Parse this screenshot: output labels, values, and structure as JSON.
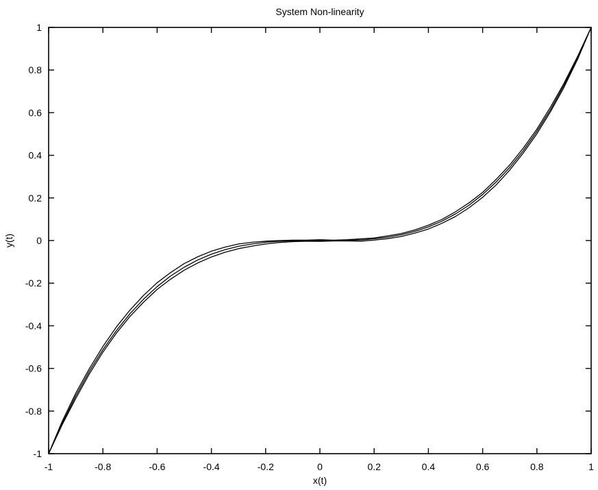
{
  "chart_data": {
    "type": "line",
    "title": "System Non-linearity",
    "xlabel": "x(t)",
    "ylabel": "y(t)",
    "xlim": [
      -1,
      1
    ],
    "ylim": [
      -1,
      1
    ],
    "grid": false,
    "x_ticks": [
      -1,
      -0.8,
      -0.6,
      -0.4,
      -0.2,
      0,
      0.2,
      0.4,
      0.6,
      0.8,
      1
    ],
    "x_tick_labels": [
      "-1",
      "-0.8",
      "-0.6",
      "-0.4",
      "-0.2",
      "0",
      "0.2",
      "0.4",
      "0.6",
      "0.8",
      "1"
    ],
    "y_ticks": [
      -1,
      -0.8,
      -0.6,
      -0.4,
      -0.2,
      0,
      0.2,
      0.4,
      0.6,
      0.8,
      1
    ],
    "y_tick_labels": [
      "-1",
      "-0.8",
      "-0.6",
      "-0.4",
      "-0.2",
      "0",
      "0.2",
      "0.4",
      "0.6",
      "0.8",
      "1"
    ],
    "x": [
      -1,
      -0.95,
      -0.9,
      -0.85,
      -0.8,
      -0.75,
      -0.7,
      -0.65,
      -0.6,
      -0.55,
      -0.5,
      -0.45,
      -0.4,
      -0.35,
      -0.3,
      -0.25,
      -0.2,
      -0.15,
      -0.1,
      -0.05,
      0,
      0.05,
      0.1,
      0.15,
      0.2,
      0.25,
      0.3,
      0.35,
      0.4,
      0.45,
      0.5,
      0.55,
      0.6,
      0.65,
      0.7,
      0.75,
      0.8,
      0.85,
      0.9,
      0.95,
      1
    ],
    "series": [
      {
        "values": [
          -1,
          -0.857,
          -0.729,
          -0.614,
          -0.512,
          -0.422,
          -0.343,
          -0.275,
          -0.216,
          -0.166,
          -0.125,
          -0.091,
          -0.064,
          -0.043,
          -0.027,
          -0.016,
          -0.008,
          -0.003,
          -0.001,
          0,
          0,
          0,
          0.001,
          0.003,
          0.008,
          0.016,
          0.027,
          0.043,
          0.064,
          0.091,
          0.125,
          0.166,
          0.216,
          0.275,
          0.343,
          0.422,
          0.512,
          0.614,
          0.729,
          0.857,
          1
        ]
      },
      {
        "values": [
          -1,
          -0.848,
          -0.716,
          -0.601,
          -0.497,
          -0.405,
          -0.326,
          -0.257,
          -0.198,
          -0.15,
          -0.108,
          -0.076,
          -0.05,
          -0.031,
          -0.016,
          -0.008,
          -0.003,
          0,
          0.002,
          0.002,
          0.004,
          0.002,
          0.004,
          0.008,
          0.012,
          0.022,
          0.033,
          0.05,
          0.072,
          0.099,
          0.135,
          0.177,
          0.226,
          0.287,
          0.355,
          0.434,
          0.523,
          0.626,
          0.738,
          0.864,
          1
        ]
      },
      {
        "values": [
          -1,
          -0.864,
          -0.741,
          -0.626,
          -0.524,
          -0.434,
          -0.356,
          -0.289,
          -0.229,
          -0.181,
          -0.139,
          -0.105,
          -0.077,
          -0.055,
          -0.038,
          -0.026,
          -0.016,
          -0.009,
          -0.005,
          -0.003,
          -0.004,
          -0.002,
          -0.002,
          -0.003,
          0.002,
          0.009,
          0.019,
          0.035,
          0.054,
          0.081,
          0.113,
          0.154,
          0.203,
          0.261,
          0.331,
          0.411,
          0.501,
          0.604,
          0.719,
          0.85,
          1
        ]
      }
    ]
  }
}
